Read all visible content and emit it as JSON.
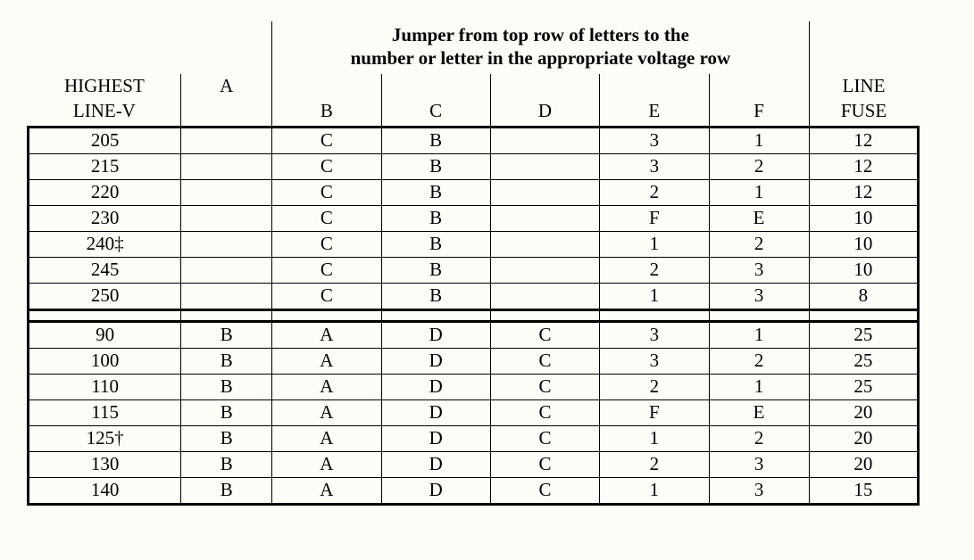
{
  "title_line1": "Jumper from top row of letters to the",
  "title_line2": "number or letter in the appropriate voltage row",
  "header": {
    "col0_line1": "HIGHEST",
    "col0_line2": "LINE-V",
    "col1": "A",
    "col2": "B",
    "col3": "C",
    "col4": "D",
    "col5": "E",
    "col6": "F",
    "col7_line1": "LINE",
    "col7_line2": "FUSE"
  },
  "block1": [
    {
      "v": "205",
      "a": "",
      "b": "C",
      "c": "B",
      "d": "",
      "e": "3",
      "f": "1",
      "fuse": "12"
    },
    {
      "v": "215",
      "a": "",
      "b": "C",
      "c": "B",
      "d": "",
      "e": "3",
      "f": "2",
      "fuse": "12"
    },
    {
      "v": "220",
      "a": "",
      "b": "C",
      "c": "B",
      "d": "",
      "e": "2",
      "f": "1",
      "fuse": "12"
    },
    {
      "v": "230",
      "a": "",
      "b": "C",
      "c": "B",
      "d": "",
      "e": "F",
      "f": "E",
      "fuse": "10"
    },
    {
      "v": "240‡",
      "a": "",
      "b": "C",
      "c": "B",
      "d": "",
      "e": "1",
      "f": "2",
      "fuse": "10"
    },
    {
      "v": "245",
      "a": "",
      "b": "C",
      "c": "B",
      "d": "",
      "e": "2",
      "f": "3",
      "fuse": "10"
    },
    {
      "v": "250",
      "a": "",
      "b": "C",
      "c": "B",
      "d": "",
      "e": "1",
      "f": "3",
      "fuse": "8"
    }
  ],
  "block2": [
    {
      "v": "90",
      "a": "B",
      "b": "A",
      "c": "D",
      "d": "C",
      "e": "3",
      "f": "1",
      "fuse": "25"
    },
    {
      "v": "100",
      "a": "B",
      "b": "A",
      "c": "D",
      "d": "C",
      "e": "3",
      "f": "2",
      "fuse": "25"
    },
    {
      "v": "110",
      "a": "B",
      "b": "A",
      "c": "D",
      "d": "C",
      "e": "2",
      "f": "1",
      "fuse": "25"
    },
    {
      "v": "115",
      "a": "B",
      "b": "A",
      "c": "D",
      "d": "C",
      "e": "F",
      "f": "E",
      "fuse": "20"
    },
    {
      "v": "125†",
      "a": "B",
      "b": "A",
      "c": "D",
      "d": "C",
      "e": "1",
      "f": "2",
      "fuse": "20"
    },
    {
      "v": "130",
      "a": "B",
      "b": "A",
      "c": "D",
      "d": "C",
      "e": "2",
      "f": "3",
      "fuse": "20"
    },
    {
      "v": "140",
      "a": "B",
      "b": "A",
      "c": "D",
      "d": "C",
      "e": "1",
      "f": "3",
      "fuse": "15"
    }
  ]
}
